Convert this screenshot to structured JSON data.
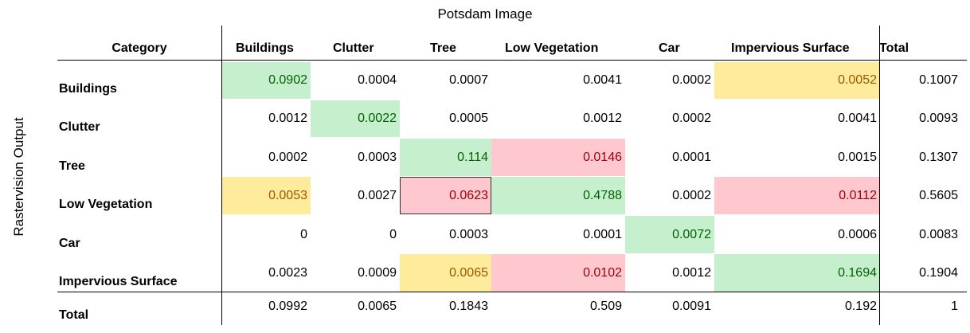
{
  "title": "Potsdam Image",
  "side_title": "Rastervision Output",
  "header": {
    "category": "Category",
    "cols": [
      "Buildings",
      "Clutter",
      "Tree",
      "Low Vegetation",
      "Car",
      "Impervious Surface",
      "Total"
    ]
  },
  "rows": [
    {
      "label": "Buildings",
      "values": [
        "0.0902",
        "0.0004",
        "0.0007",
        "0.0041",
        "0.0002",
        "0.0052",
        "0.1007"
      ]
    },
    {
      "label": "Clutter",
      "values": [
        "0.0012",
        "0.0022",
        "0.0005",
        "0.0012",
        "0.0002",
        "0.0041",
        "0.0093"
      ]
    },
    {
      "label": "Tree",
      "values": [
        "0.0002",
        "0.0003",
        "0.114",
        "0.0146",
        "0.0001",
        "0.0015",
        "0.1307"
      ]
    },
    {
      "label": "Low Vegetation",
      "values": [
        "0.0053",
        "0.0027",
        "0.0623",
        "0.4788",
        "0.0002",
        "0.0112",
        "0.5605"
      ]
    },
    {
      "label": "Car",
      "values": [
        "0",
        "0",
        "0.0003",
        "0.0001",
        "0.0072",
        "0.0006",
        "0.0083"
      ]
    },
    {
      "label": "Impervious Surface",
      "values": [
        "0.0023",
        "0.0009",
        "0.0065",
        "0.0102",
        "0.0012",
        "0.1694",
        "0.1904"
      ]
    },
    {
      "label": "Total",
      "values": [
        "0.0992",
        "0.0065",
        "0.1843",
        "0.509",
        "0.0091",
        "0.192",
        "1"
      ]
    }
  ],
  "highlight_colors": {
    "green": "#c6efce",
    "red": "#ffc7ce",
    "yellow": "#ffeb9c"
  }
}
